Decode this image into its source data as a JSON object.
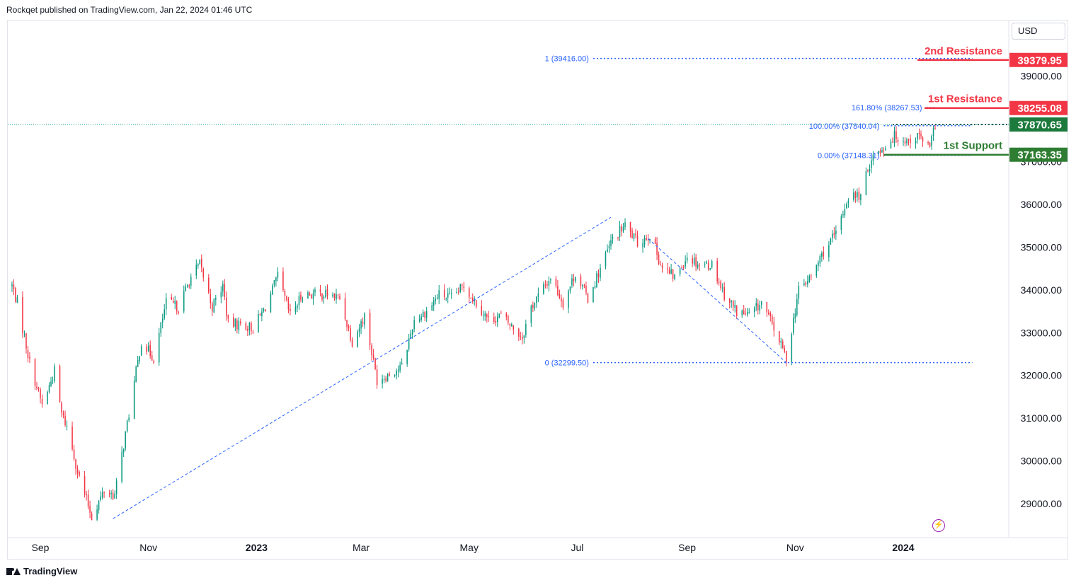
{
  "header": {
    "text": "Rockqet published on TradingView.com, Jan 22, 2024 01:46 UTC"
  },
  "currency": "USD",
  "footer": {
    "brand": "TradingView"
  },
  "colors": {
    "up": "#089981",
    "down": "#f23645",
    "resistance": "#f23645",
    "support": "#2e7d32",
    "fib": "#2962ff",
    "current": "#089981"
  },
  "chart_data": {
    "type": "candlestick",
    "y_ticks": [
      29000,
      30000,
      31000,
      32000,
      33000,
      34000,
      35000,
      36000,
      37000,
      39000
    ],
    "y_tick_labels": [
      "29000.00",
      "30000.00",
      "31000.00",
      "32000.00",
      "33000.00",
      "34000.00",
      "35000.00",
      "36000.00",
      "37000.00",
      "39000.00"
    ],
    "x_labels": [
      {
        "date": "2022-09-01",
        "label": "Sep",
        "bold": false
      },
      {
        "date": "2022-11-01",
        "label": "Nov",
        "bold": false
      },
      {
        "date": "2023-01-01",
        "label": "2023",
        "bold": true
      },
      {
        "date": "2023-03-01",
        "label": "Mar",
        "bold": false
      },
      {
        "date": "2023-05-01",
        "label": "May",
        "bold": false
      },
      {
        "date": "2023-07-01",
        "label": "Jul",
        "bold": false
      },
      {
        "date": "2023-09-01",
        "label": "Sep",
        "bold": false
      },
      {
        "date": "2023-11-01",
        "label": "Nov",
        "bold": false
      },
      {
        "date": "2024-01-01",
        "label": "2024",
        "bold": true
      }
    ],
    "price_path": [
      [
        "2022-08-16",
        34100
      ],
      [
        "2022-08-19",
        33700
      ],
      [
        "2022-08-26",
        32300
      ],
      [
        "2022-09-02",
        31300
      ],
      [
        "2022-09-09",
        32100
      ],
      [
        "2022-09-13",
        31100
      ],
      [
        "2022-09-16",
        30800
      ],
      [
        "2022-09-23",
        29600
      ],
      [
        "2022-09-30",
        28700
      ],
      [
        "2022-10-07",
        29300
      ],
      [
        "2022-10-13",
        29200
      ],
      [
        "2022-10-21",
        31100
      ],
      [
        "2022-10-28",
        32800
      ],
      [
        "2022-11-04",
        32400
      ],
      [
        "2022-11-11",
        33700
      ],
      [
        "2022-11-18",
        33600
      ],
      [
        "2022-11-25",
        34300
      ],
      [
        "2022-11-30",
        34600
      ],
      [
        "2022-12-07",
        33600
      ],
      [
        "2022-12-13",
        34100
      ],
      [
        "2022-12-16",
        33200
      ],
      [
        "2022-12-23",
        33200
      ],
      [
        "2022-12-30",
        33100
      ],
      [
        "2023-01-06",
        33600
      ],
      [
        "2023-01-13",
        34300
      ],
      [
        "2023-01-20",
        33400
      ],
      [
        "2023-01-27",
        33900
      ],
      [
        "2023-02-03",
        33900
      ],
      [
        "2023-02-10",
        33900
      ],
      [
        "2023-02-17",
        33800
      ],
      [
        "2023-02-24",
        32800
      ],
      [
        "2023-03-03",
        33400
      ],
      [
        "2023-03-10",
        31900
      ],
      [
        "2023-03-15",
        32000
      ],
      [
        "2023-03-24",
        32200
      ],
      [
        "2023-03-31",
        33300
      ],
      [
        "2023-04-07",
        33500
      ],
      [
        "2023-04-14",
        33900
      ],
      [
        "2023-04-21",
        33800
      ],
      [
        "2023-04-28",
        34100
      ],
      [
        "2023-05-05",
        33700
      ],
      [
        "2023-05-12",
        33300
      ],
      [
        "2023-05-19",
        33400
      ],
      [
        "2023-05-26",
        33100
      ],
      [
        "2023-05-31",
        32900
      ],
      [
        "2023-06-05",
        33600
      ],
      [
        "2023-06-16",
        34300
      ],
      [
        "2023-06-23",
        33700
      ],
      [
        "2023-06-30",
        34400
      ],
      [
        "2023-07-07",
        33800
      ],
      [
        "2023-07-14",
        34500
      ],
      [
        "2023-07-21",
        35200
      ],
      [
        "2023-07-28",
        35500
      ],
      [
        "2023-08-04",
        35100
      ],
      [
        "2023-08-11",
        35300
      ],
      [
        "2023-08-18",
        34500
      ],
      [
        "2023-08-25",
        34300
      ],
      [
        "2023-09-01",
        34800
      ],
      [
        "2023-09-08",
        34600
      ],
      [
        "2023-09-15",
        34600
      ],
      [
        "2023-09-22",
        33900
      ],
      [
        "2023-09-29",
        33500
      ],
      [
        "2023-10-06",
        33400
      ],
      [
        "2023-10-13",
        33700
      ],
      [
        "2023-10-20",
        33100
      ],
      [
        "2023-10-27",
        32400
      ],
      [
        "2023-11-03",
        34000
      ],
      [
        "2023-11-10",
        34300
      ],
      [
        "2023-11-17",
        34900
      ],
      [
        "2023-11-24",
        35300
      ],
      [
        "2023-12-01",
        36200
      ],
      [
        "2023-12-08",
        36200
      ],
      [
        "2023-12-14",
        37100
      ],
      [
        "2023-12-20",
        37300
      ],
      [
        "2023-12-27",
        37600
      ],
      [
        "2024-01-03",
        37500
      ],
      [
        "2024-01-10",
        37600
      ],
      [
        "2024-01-16",
        37300
      ],
      [
        "2024-01-19",
        37870
      ]
    ],
    "trend_lines": [
      {
        "from": [
          "2022-10-12",
          28650
        ],
        "to": [
          "2023-07-20",
          35700
        ]
      },
      {
        "from": [
          "2023-08-10",
          35200
        ],
        "to": [
          "2023-10-27",
          32300
        ]
      }
    ],
    "fib_levels": [
      {
        "label": "1 (39416.00)",
        "value": 39416.0,
        "from": "2023-07-10",
        "to": "2024-02-09"
      },
      {
        "label": "0 (32299.50)",
        "value": 32299.5,
        "from": "2023-07-10",
        "to": "2024-02-09"
      },
      {
        "label": "161.80% (38267.53)",
        "value": 38267.53,
        "from": "2024-01-14",
        "to": "2024-01-19"
      },
      {
        "label": "100.00% (37840.04)",
        "value": 37840.04,
        "from": "2023-12-21",
        "to": "2024-02-09"
      },
      {
        "label": "0.00% (37148.31)",
        "value": 37148.31,
        "from": "2023-12-21",
        "to": "2024-02-09"
      }
    ],
    "levels": [
      {
        "name": "2nd Resistance",
        "value": 39379.95,
        "label": "39379.95",
        "kind": "resistance"
      },
      {
        "name": "1st Resistance",
        "value": 38255.08,
        "label": "38255.08",
        "kind": "resistance"
      },
      {
        "name": "1st Support",
        "value": 37163.35,
        "label": "37163.35",
        "kind": "support"
      }
    ],
    "current_price": {
      "value": 37870.65,
      "label": "37870.65"
    }
  }
}
